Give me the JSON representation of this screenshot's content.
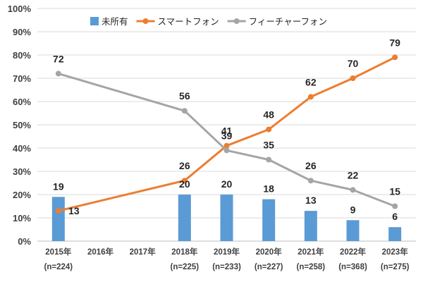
{
  "chart_data": {
    "type": "bar",
    "categories": [
      "2015年",
      "2016年",
      "2017年",
      "2018年",
      "2019年",
      "2020年",
      "2021年",
      "2022年",
      "2023年"
    ],
    "category_notes": [
      "(n=224)",
      "",
      "",
      "(n=225)",
      "(n=233)",
      "(n=227)",
      "(n=258)",
      "(n=368)",
      "(n=275)"
    ],
    "ylim": [
      0,
      100
    ],
    "y_ticks": [
      0,
      10,
      20,
      30,
      40,
      50,
      60,
      70,
      80,
      90,
      100
    ],
    "y_tick_suffix": "%",
    "grid": true,
    "legend_position": "top",
    "series": [
      {
        "name": "未所有",
        "type": "bar",
        "color": "#5b9bd5",
        "values": [
          19,
          null,
          null,
          20,
          20,
          18,
          13,
          9,
          6
        ]
      },
      {
        "name": "スマートフォン",
        "type": "line",
        "color": "#ed7d31",
        "values": [
          13,
          null,
          null,
          26,
          41,
          48,
          62,
          70,
          79
        ]
      },
      {
        "name": "フィーチャーフォン",
        "type": "line",
        "color": "#a5a5a5",
        "values": [
          72,
          null,
          null,
          56,
          39,
          35,
          26,
          22,
          15
        ]
      }
    ]
  }
}
